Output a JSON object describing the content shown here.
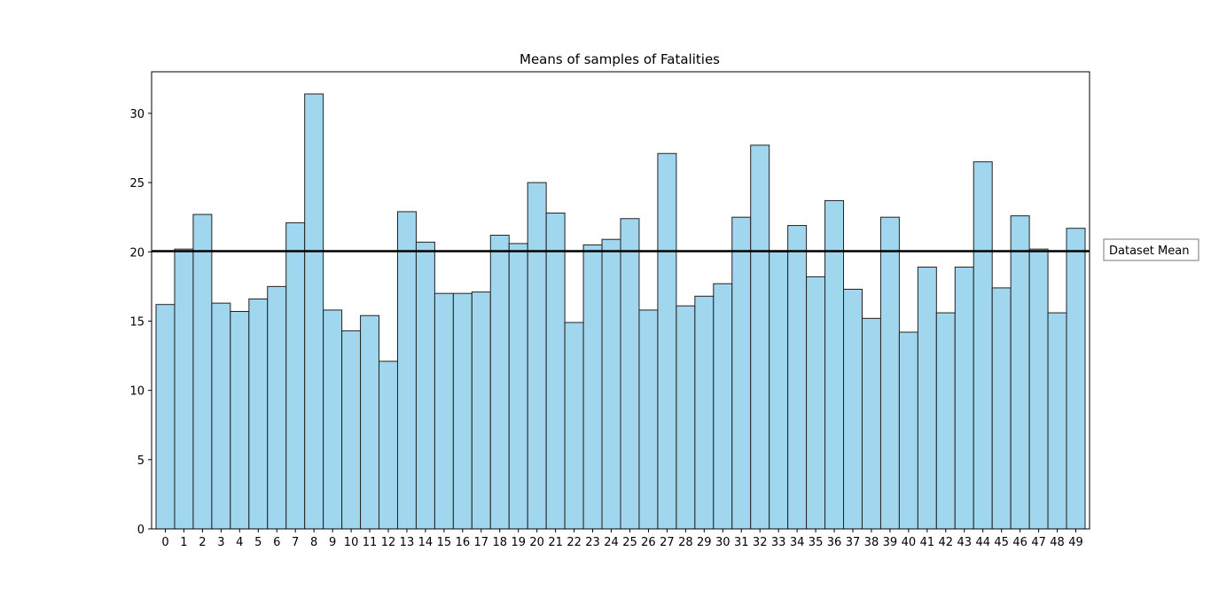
{
  "chart_data": {
    "type": "bar",
    "title": "Means of samples of Fatalities",
    "xlabel": "",
    "ylabel": "",
    "categories": [
      "0",
      "1",
      "2",
      "3",
      "4",
      "5",
      "6",
      "7",
      "8",
      "9",
      "10",
      "11",
      "12",
      "13",
      "14",
      "15",
      "16",
      "17",
      "18",
      "19",
      "20",
      "21",
      "22",
      "23",
      "24",
      "25",
      "26",
      "27",
      "28",
      "29",
      "30",
      "31",
      "32",
      "33",
      "34",
      "35",
      "36",
      "37",
      "38",
      "39",
      "40",
      "41",
      "42",
      "43",
      "44",
      "45",
      "46",
      "47",
      "48",
      "49"
    ],
    "values": [
      16.2,
      20.2,
      22.7,
      16.3,
      15.7,
      16.6,
      17.5,
      22.1,
      31.4,
      15.8,
      14.3,
      15.4,
      12.1,
      22.9,
      20.7,
      17.0,
      17.0,
      17.1,
      21.2,
      20.6,
      25.0,
      22.8,
      14.9,
      20.5,
      20.9,
      22.4,
      15.8,
      27.1,
      16.1,
      16.8,
      17.7,
      22.5,
      27.7,
      20.0,
      21.9,
      18.2,
      23.7,
      17.3,
      15.2,
      22.5,
      14.2,
      18.9,
      15.6,
      18.9,
      26.5,
      17.4,
      22.6,
      20.2,
      15.6,
      21.7
    ],
    "ylim": [
      0,
      33
    ],
    "yticks": [
      0,
      5,
      10,
      15,
      20,
      25,
      30
    ],
    "reference_line": {
      "label": "Dataset Mean",
      "value": 20.05,
      "color": "#000000"
    },
    "bar_color": "#a1d7ee",
    "bar_edge_color": "#222222",
    "grid": false,
    "legend_placement": "right, outside plot"
  }
}
